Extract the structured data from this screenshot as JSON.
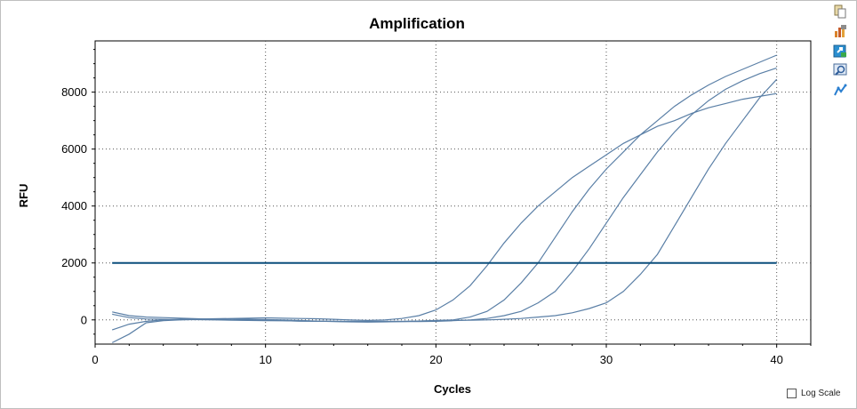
{
  "toolbar": {
    "icons": [
      "copy-icon",
      "export-chart-icon",
      "export-data-icon",
      "zoom-icon",
      "trace-icon"
    ]
  },
  "log_scale": {
    "label": "Log Scale",
    "checked": false
  },
  "chart_data": {
    "type": "line",
    "title": "Amplification",
    "xlabel": "Cycles",
    "ylabel": "RFU",
    "xlim": [
      0,
      42
    ],
    "ylim": [
      -850,
      9800
    ],
    "xticks": [
      0,
      10,
      20,
      30,
      40
    ],
    "yticks": [
      0,
      2000,
      4000,
      6000,
      8000
    ],
    "grid": true,
    "line_color": "#5a7fa6",
    "threshold": {
      "value": 2000,
      "x_range": [
        1,
        40
      ],
      "color": "#0b4f7c"
    },
    "x": [
      1,
      2,
      3,
      4,
      5,
      6,
      7,
      8,
      9,
      10,
      11,
      12,
      13,
      14,
      15,
      16,
      17,
      18,
      19,
      20,
      21,
      22,
      23,
      24,
      25,
      26,
      27,
      28,
      29,
      30,
      31,
      32,
      33,
      34,
      35,
      36,
      37,
      38,
      39,
      40
    ],
    "series": [
      {
        "values": [
          -350,
          -150,
          -50,
          0,
          20,
          30,
          40,
          50,
          60,
          70,
          60,
          50,
          40,
          20,
          0,
          -20,
          0,
          50,
          150,
          350,
          700,
          1200,
          1900,
          2700,
          3400,
          4000,
          4500,
          5000,
          5400,
          5800,
          6200,
          6500,
          6800,
          7000,
          7250,
          7450,
          7600,
          7750,
          7850,
          7950
        ]
      },
      {
        "values": [
          -800,
          -500,
          -100,
          -30,
          0,
          20,
          30,
          30,
          20,
          10,
          0,
          -20,
          -40,
          -60,
          -70,
          -80,
          -70,
          -60,
          -40,
          -20,
          0,
          100,
          300,
          700,
          1300,
          2000,
          2900,
          3800,
          4600,
          5300,
          5900,
          6500,
          7000,
          7500,
          7900,
          8250,
          8550,
          8800,
          9050,
          9300
        ]
      },
      {
        "values": [
          200,
          80,
          30,
          20,
          10,
          10,
          0,
          -10,
          -20,
          -30,
          -30,
          -40,
          -50,
          -50,
          -60,
          -60,
          -60,
          -60,
          -60,
          -50,
          -30,
          0,
          50,
          150,
          300,
          600,
          1000,
          1700,
          2500,
          3400,
          4300,
          5100,
          5900,
          6600,
          7200,
          7700,
          8100,
          8400,
          8650,
          8850
        ]
      },
      {
        "values": [
          280,
          150,
          100,
          80,
          60,
          40,
          20,
          0,
          -10,
          -20,
          -30,
          -40,
          -40,
          -50,
          -50,
          -50,
          -50,
          -50,
          -40,
          -30,
          -20,
          -10,
          0,
          20,
          50,
          100,
          150,
          250,
          400,
          600,
          1000,
          1600,
          2300,
          3300,
          4300,
          5300,
          6200,
          7000,
          7800,
          8450
        ]
      }
    ]
  }
}
